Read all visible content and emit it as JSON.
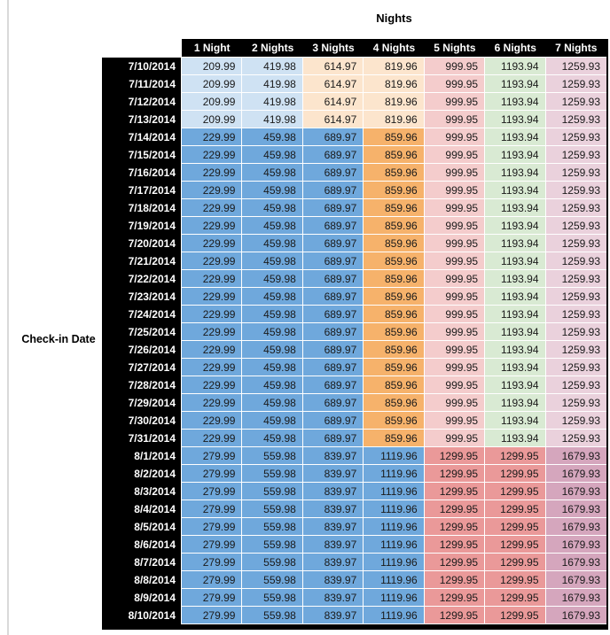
{
  "title": "Nights",
  "row_axis_label": "Check-in Date",
  "colors": {
    "header_bg": "#000000",
    "header_text": "#ffffff",
    "number_text": "#1a1a1a",
    "cell_border": "#ffffff",
    "left_rule": "#d9d9d9",
    "light_blue": "#CFE2F3",
    "medium_blue": "#6FA8DC",
    "light_orange": "#FCE5CD",
    "medium_orange": "#F6B26B",
    "light_red": "#F4CCCC",
    "medium_red": "#EA9999",
    "light_green": "#D9EAD3",
    "light_magenta": "#EAD1DC",
    "medium_magenta": "#D5A6BD"
  },
  "chart_data": {
    "type": "table",
    "title": "Nights",
    "row_label": "Check-in Date",
    "columns": [
      "1 Night",
      "2 Nights",
      "3 Nights",
      "4 Nights",
      "5 Nights",
      "6 Nights",
      "7 Nights"
    ],
    "band_colors": {
      "early_july": [
        "#CFE2F3",
        "#CFE2F3",
        "#FCE5CD",
        "#FCE5CD",
        "#F4CCCC",
        "#D9EAD3",
        "#EAD1DC"
      ],
      "mid_july": [
        "#6FA8DC",
        "#6FA8DC",
        "#6FA8DC",
        "#F6B26B",
        "#F4CCCC",
        "#D9EAD3",
        "#EAD1DC"
      ],
      "august": [
        "#6FA8DC",
        "#6FA8DC",
        "#6FA8DC",
        "#6FA8DC",
        "#EA9999",
        "#EA9999",
        "#D5A6BD"
      ]
    },
    "rows": [
      {
        "date": "7/10/2014",
        "band": "early_july",
        "values": [
          "209.99",
          "419.98",
          "614.97",
          "819.96",
          "999.95",
          "1193.94",
          "1259.93"
        ]
      },
      {
        "date": "7/11/2014",
        "band": "early_july",
        "values": [
          "209.99",
          "419.98",
          "614.97",
          "819.96",
          "999.95",
          "1193.94",
          "1259.93"
        ]
      },
      {
        "date": "7/12/2014",
        "band": "early_july",
        "values": [
          "209.99",
          "419.98",
          "614.97",
          "819.96",
          "999.95",
          "1193.94",
          "1259.93"
        ]
      },
      {
        "date": "7/13/2014",
        "band": "early_july",
        "values": [
          "209.99",
          "419.98",
          "614.97",
          "819.96",
          "999.95",
          "1193.94",
          "1259.93"
        ]
      },
      {
        "date": "7/14/2014",
        "band": "mid_july",
        "values": [
          "229.99",
          "459.98",
          "689.97",
          "859.96",
          "999.95",
          "1193.94",
          "1259.93"
        ]
      },
      {
        "date": "7/15/2014",
        "band": "mid_july",
        "values": [
          "229.99",
          "459.98",
          "689.97",
          "859.96",
          "999.95",
          "1193.94",
          "1259.93"
        ]
      },
      {
        "date": "7/16/2014",
        "band": "mid_july",
        "values": [
          "229.99",
          "459.98",
          "689.97",
          "859.96",
          "999.95",
          "1193.94",
          "1259.93"
        ]
      },
      {
        "date": "7/17/2014",
        "band": "mid_july",
        "values": [
          "229.99",
          "459.98",
          "689.97",
          "859.96",
          "999.95",
          "1193.94",
          "1259.93"
        ]
      },
      {
        "date": "7/18/2014",
        "band": "mid_july",
        "values": [
          "229.99",
          "459.98",
          "689.97",
          "859.96",
          "999.95",
          "1193.94",
          "1259.93"
        ]
      },
      {
        "date": "7/19/2014",
        "band": "mid_july",
        "values": [
          "229.99",
          "459.98",
          "689.97",
          "859.96",
          "999.95",
          "1193.94",
          "1259.93"
        ]
      },
      {
        "date": "7/20/2014",
        "band": "mid_july",
        "values": [
          "229.99",
          "459.98",
          "689.97",
          "859.96",
          "999.95",
          "1193.94",
          "1259.93"
        ]
      },
      {
        "date": "7/21/2014",
        "band": "mid_july",
        "values": [
          "229.99",
          "459.98",
          "689.97",
          "859.96",
          "999.95",
          "1193.94",
          "1259.93"
        ]
      },
      {
        "date": "7/22/2014",
        "band": "mid_july",
        "values": [
          "229.99",
          "459.98",
          "689.97",
          "859.96",
          "999.95",
          "1193.94",
          "1259.93"
        ]
      },
      {
        "date": "7/23/2014",
        "band": "mid_july",
        "values": [
          "229.99",
          "459.98",
          "689.97",
          "859.96",
          "999.95",
          "1193.94",
          "1259.93"
        ]
      },
      {
        "date": "7/24/2014",
        "band": "mid_july",
        "values": [
          "229.99",
          "459.98",
          "689.97",
          "859.96",
          "999.95",
          "1193.94",
          "1259.93"
        ]
      },
      {
        "date": "7/25/2014",
        "band": "mid_july",
        "values": [
          "229.99",
          "459.98",
          "689.97",
          "859.96",
          "999.95",
          "1193.94",
          "1259.93"
        ]
      },
      {
        "date": "7/26/2014",
        "band": "mid_july",
        "values": [
          "229.99",
          "459.98",
          "689.97",
          "859.96",
          "999.95",
          "1193.94",
          "1259.93"
        ]
      },
      {
        "date": "7/27/2014",
        "band": "mid_july",
        "values": [
          "229.99",
          "459.98",
          "689.97",
          "859.96",
          "999.95",
          "1193.94",
          "1259.93"
        ]
      },
      {
        "date": "7/28/2014",
        "band": "mid_july",
        "values": [
          "229.99",
          "459.98",
          "689.97",
          "859.96",
          "999.95",
          "1193.94",
          "1259.93"
        ]
      },
      {
        "date": "7/29/2014",
        "band": "mid_july",
        "values": [
          "229.99",
          "459.98",
          "689.97",
          "859.96",
          "999.95",
          "1193.94",
          "1259.93"
        ]
      },
      {
        "date": "7/30/2014",
        "band": "mid_july",
        "values": [
          "229.99",
          "459.98",
          "689.97",
          "859.96",
          "999.95",
          "1193.94",
          "1259.93"
        ]
      },
      {
        "date": "7/31/2014",
        "band": "mid_july",
        "values": [
          "229.99",
          "459.98",
          "689.97",
          "859.96",
          "999.95",
          "1193.94",
          "1259.93"
        ]
      },
      {
        "date": "8/1/2014",
        "band": "august",
        "values": [
          "279.99",
          "559.98",
          "839.97",
          "1119.96",
          "1299.95",
          "1299.95",
          "1679.93"
        ]
      },
      {
        "date": "8/2/2014",
        "band": "august",
        "values": [
          "279.99",
          "559.98",
          "839.97",
          "1119.96",
          "1299.95",
          "1299.95",
          "1679.93"
        ]
      },
      {
        "date": "8/3/2014",
        "band": "august",
        "values": [
          "279.99",
          "559.98",
          "839.97",
          "1119.96",
          "1299.95",
          "1299.95",
          "1679.93"
        ]
      },
      {
        "date": "8/4/2014",
        "band": "august",
        "values": [
          "279.99",
          "559.98",
          "839.97",
          "1119.96",
          "1299.95",
          "1299.95",
          "1679.93"
        ]
      },
      {
        "date": "8/5/2014",
        "band": "august",
        "values": [
          "279.99",
          "559.98",
          "839.97",
          "1119.96",
          "1299.95",
          "1299.95",
          "1679.93"
        ]
      },
      {
        "date": "8/6/2014",
        "band": "august",
        "values": [
          "279.99",
          "559.98",
          "839.97",
          "1119.96",
          "1299.95",
          "1299.95",
          "1679.93"
        ]
      },
      {
        "date": "8/7/2014",
        "band": "august",
        "values": [
          "279.99",
          "559.98",
          "839.97",
          "1119.96",
          "1299.95",
          "1299.95",
          "1679.93"
        ]
      },
      {
        "date": "8/8/2014",
        "band": "august",
        "values": [
          "279.99",
          "559.98",
          "839.97",
          "1119.96",
          "1299.95",
          "1299.95",
          "1679.93"
        ]
      },
      {
        "date": "8/9/2014",
        "band": "august",
        "values": [
          "279.99",
          "559.98",
          "839.97",
          "1119.96",
          "1299.95",
          "1299.95",
          "1679.93"
        ]
      },
      {
        "date": "8/10/2014",
        "band": "august",
        "values": [
          "279.99",
          "559.98",
          "839.97",
          "1119.96",
          "1299.95",
          "1299.95",
          "1679.93"
        ]
      }
    ]
  }
}
